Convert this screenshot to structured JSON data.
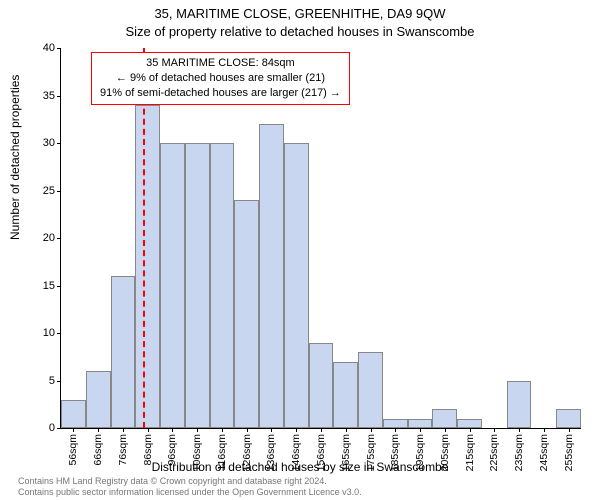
{
  "chart": {
    "type": "histogram",
    "title_main": "35, MARITIME CLOSE, GREENHITHE, DA9 9QW",
    "title_sub": "Size of property relative to detached houses in Swanscombe",
    "ylabel": "Number of detached properties",
    "xlabel": "Distribution of detached houses by size in Swanscombe",
    "ylim": [
      0,
      40
    ],
    "ytick_step": 5,
    "background_color": "#ffffff",
    "bar_fill": "#c8d7ef",
    "bar_border": "#888888",
    "marker_color": "#ff0000",
    "marker_value_sqm": 84,
    "x_categories": [
      "56sqm",
      "66sqm",
      "76sqm",
      "86sqm",
      "96sqm",
      "106sqm",
      "116sqm",
      "126sqm",
      "136sqm",
      "146sqm",
      "156sqm",
      "165sqm",
      "175sqm",
      "185sqm",
      "195sqm",
      "205sqm",
      "215sqm",
      "225sqm",
      "235sqm",
      "245sqm",
      "255sqm"
    ],
    "values": [
      3,
      6,
      16,
      34,
      30,
      30,
      30,
      24,
      32,
      30,
      9,
      7,
      8,
      1,
      1,
      2,
      1,
      0,
      5,
      0,
      2
    ],
    "annotation": {
      "line1": "35 MARITIME CLOSE: 84sqm",
      "line2": "← 9% of detached houses are smaller (21)",
      "line3": "91% of semi-detached houses are larger (217) →"
    },
    "title_fontsize": 13,
    "label_fontsize": 12,
    "tick_fontsize": 11
  },
  "footer": {
    "line1": "Contains HM Land Registry data © Crown copyright and database right 2024.",
    "line2": "Contains public sector information licensed under the Open Government Licence v3.0."
  }
}
